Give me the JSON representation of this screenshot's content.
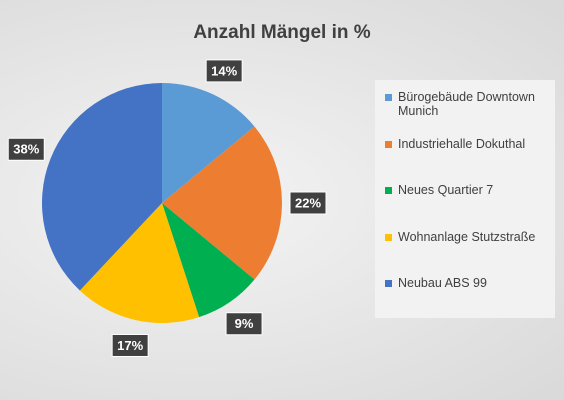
{
  "chart_data": {
    "type": "pie",
    "title": "Anzahl Mängel in %",
    "categories": [
      "Bürogebäude Downtown Munich",
      "Industriehalle Dokuthal",
      "Neues Quartier 7",
      "Wohnanlage Stutzstraße",
      "Neubau ABS 99"
    ],
    "values": [
      14,
      22,
      9,
      17,
      38
    ],
    "value_labels": [
      "14%",
      "22%",
      "9%",
      "17%",
      "38%"
    ],
    "colors": [
      "#5b9bd5",
      "#ed7d31",
      "#00b050",
      "#ffc000",
      "#4472c4"
    ],
    "legend": "right"
  }
}
